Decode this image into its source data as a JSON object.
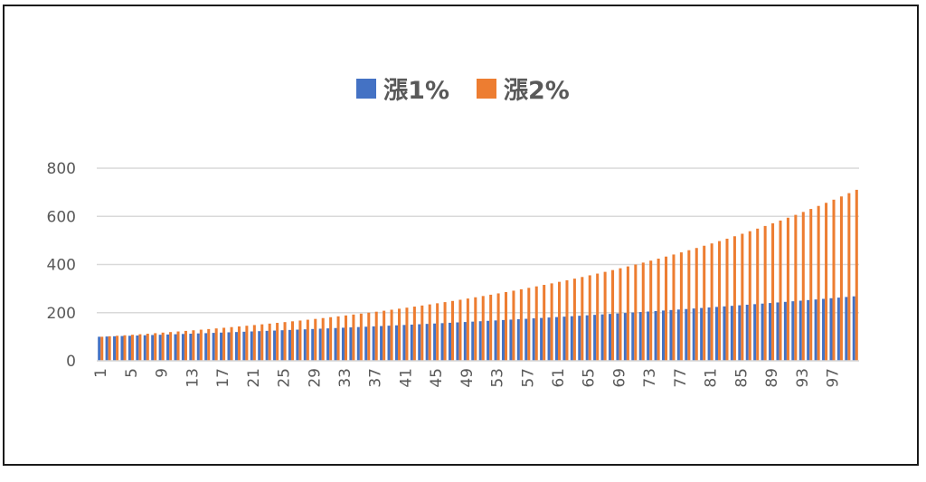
{
  "chart_data": {
    "type": "bar",
    "title": "",
    "xlabel": "",
    "ylabel": "",
    "ylim": [
      0,
      800
    ],
    "yticks": [
      0,
      200,
      400,
      600,
      800
    ],
    "grid": true,
    "legend_position": "top",
    "x": {
      "start": 1,
      "end": 100
    },
    "x_tick_labels": [
      "1",
      "5",
      "9",
      "13",
      "17",
      "21",
      "25",
      "29",
      "33",
      "37",
      "41",
      "45",
      "49",
      "53",
      "57",
      "61",
      "65",
      "69",
      "73",
      "77",
      "81",
      "85",
      "89",
      "93",
      "97"
    ],
    "series": [
      {
        "name": "漲1%",
        "color": "#4472C4",
        "start_value": 100,
        "growth_rate": 0.01
      },
      {
        "name": "漲2%",
        "color": "#ED7D31",
        "start_value": 100,
        "growth_rate": 0.02
      }
    ]
  }
}
